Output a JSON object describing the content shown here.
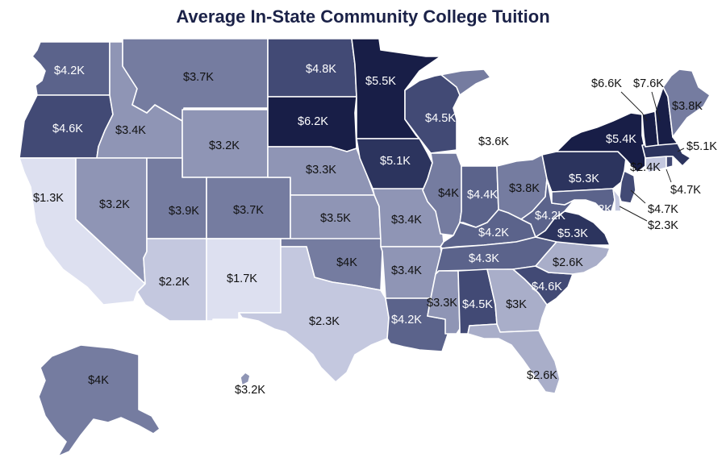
{
  "title": "Average In-State Community College Tuition",
  "colors": {
    "c1": "#dde0f0",
    "c2": "#c4c8df",
    "c3": "#a9aec9",
    "c4": "#8f95b5",
    "c5": "#757ca0",
    "c6": "#5b638b",
    "c7": "#424a75",
    "c8": "#2c345e",
    "c9": "#181e47",
    "label_light": "#ffffff",
    "label_dark": "#111111"
  },
  "states": [
    {
      "id": "WA",
      "label": "$4.2K",
      "value": 4.2
    },
    {
      "id": "OR",
      "label": "$4.6K",
      "value": 4.6
    },
    {
      "id": "CA",
      "label": "$1.3K",
      "value": 1.3
    },
    {
      "id": "ID",
      "label": "$3.4K",
      "value": 3.4
    },
    {
      "id": "NV",
      "label": "$3.2K",
      "value": 3.2
    },
    {
      "id": "MT",
      "label": "$3.7K",
      "value": 3.7
    },
    {
      "id": "WY",
      "label": "$3.2K",
      "value": 3.2
    },
    {
      "id": "UT",
      "label": "$3.9K",
      "value": 3.9
    },
    {
      "id": "CO",
      "label": "$3.7K",
      "value": 3.7
    },
    {
      "id": "AZ",
      "label": "$2.2K",
      "value": 2.2
    },
    {
      "id": "NM",
      "label": "$1.7K",
      "value": 1.7
    },
    {
      "id": "ND",
      "label": "$4.8K",
      "value": 4.8
    },
    {
      "id": "SD",
      "label": "$6.2K",
      "value": 6.2
    },
    {
      "id": "NE",
      "label": "$3.3K",
      "value": 3.3
    },
    {
      "id": "KS",
      "label": "$3.5K",
      "value": 3.5
    },
    {
      "id": "OK",
      "label": "$4K",
      "value": 4.0
    },
    {
      "id": "TX",
      "label": "$2.3K",
      "value": 2.3
    },
    {
      "id": "MN",
      "label": "$5.5K",
      "value": 5.5
    },
    {
      "id": "IA",
      "label": "$5.1K",
      "value": 5.1
    },
    {
      "id": "MO",
      "label": "$3.4K",
      "value": 3.4
    },
    {
      "id": "AR",
      "label": "$3.4K",
      "value": 3.4
    },
    {
      "id": "LA",
      "label": "$4.2K",
      "value": 4.2
    },
    {
      "id": "WI",
      "label": "$4.5K",
      "value": 4.5
    },
    {
      "id": "IL",
      "label": "$4K",
      "value": 4.0
    },
    {
      "id": "MI",
      "label": "$3.6K",
      "value": 3.6
    },
    {
      "id": "IN",
      "label": "$4.4K",
      "value": 4.4
    },
    {
      "id": "OH",
      "label": "$3.8K",
      "value": 3.8
    },
    {
      "id": "KY",
      "label": "$4.2K",
      "value": 4.2
    },
    {
      "id": "TN",
      "label": "$4.3K",
      "value": 4.3
    },
    {
      "id": "MS",
      "label": "$3.3K",
      "value": 3.3
    },
    {
      "id": "AL",
      "label": "$4.5K",
      "value": 4.5
    },
    {
      "id": "GA",
      "label": "$3K",
      "value": 3.0
    },
    {
      "id": "FL",
      "label": "$2.6K",
      "value": 2.6
    },
    {
      "id": "SC",
      "label": "$4.6K",
      "value": 4.6
    },
    {
      "id": "NC",
      "label": "$2.6K",
      "value": 2.6
    },
    {
      "id": "VA",
      "label": "$5.3K",
      "value": 5.3
    },
    {
      "id": "WV",
      "label": "$4.2K",
      "value": 4.2
    },
    {
      "id": "PA",
      "label": "$5.3K",
      "value": 5.3
    },
    {
      "id": "NY",
      "label": "$5.4K",
      "value": 5.4
    },
    {
      "id": "MD",
      "label": "$4.2K",
      "value": 4.2
    },
    {
      "id": "DE",
      "label": "$2.3K",
      "value": 2.3
    },
    {
      "id": "NJ",
      "label": "$4.7K",
      "value": 4.7
    },
    {
      "id": "CT",
      "label": "$2.4K",
      "value": 2.4
    },
    {
      "id": "RI",
      "label": "$4.7K",
      "value": 4.7
    },
    {
      "id": "MA",
      "label": "$5.1K",
      "value": 5.1
    },
    {
      "id": "VT",
      "label": "$6.6K",
      "value": 6.6
    },
    {
      "id": "NH",
      "label": "$7.6K",
      "value": 7.6
    },
    {
      "id": "ME",
      "label": "$3.8K",
      "value": 3.8
    },
    {
      "id": "AK",
      "label": "$4K",
      "value": 4.0
    },
    {
      "id": "HI",
      "label": "$3.2K",
      "value": 3.2
    }
  ]
}
